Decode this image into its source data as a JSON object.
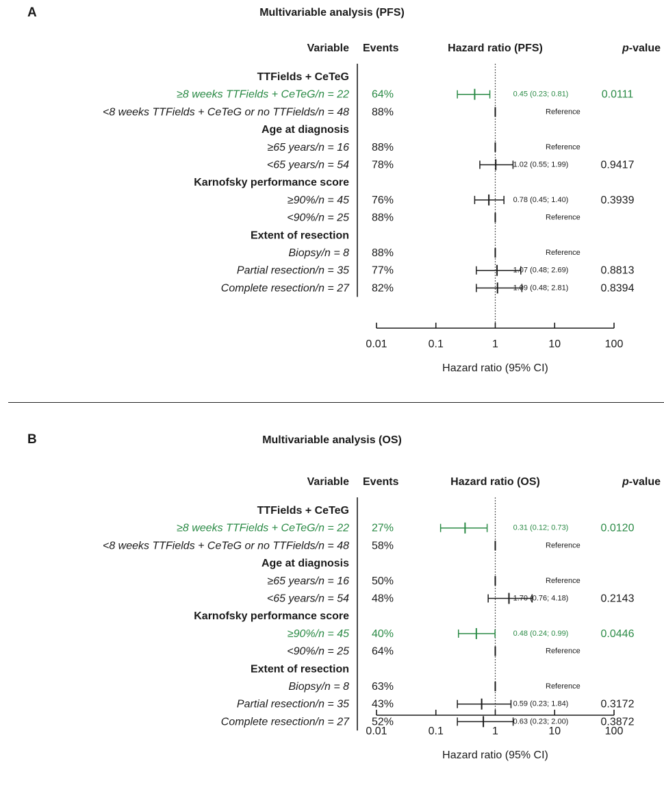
{
  "colors": {
    "highlight": "#2a8a45",
    "text": "#1a1a1a"
  },
  "panels": [
    {
      "letter": "A",
      "title": "Multivariable analysis (PFS)",
      "headers": {
        "variable": "Variable",
        "events": "Events",
        "hr": "Hazard ratio (PFS)",
        "p_prefix": "p",
        "p_suffix": "-value"
      },
      "axis": {
        "label": "Hazard ratio (95% CI)",
        "ticks": [
          "0.01",
          "0.1",
          "1",
          "10",
          "100"
        ]
      },
      "rows": [
        {
          "label": "TTFields + CeTeG",
          "kind": "group"
        },
        {
          "label": "≥8 weeks TTFields + CeTeG/n = 22",
          "kind": "item",
          "events": "64%",
          "hr": 0.45,
          "lo": 0.23,
          "hi": 0.81,
          "ci_text": "0.45 (0.23; 0.81)",
          "p": "0.0111",
          "highlight": true
        },
        {
          "label": "<8 weeks TTFields + CeTeG or no TTFields/n = 48",
          "kind": "item",
          "events": "88%",
          "hr": 1,
          "ci_text": "Reference",
          "p": "",
          "reference": true
        },
        {
          "label": "Age at diagnosis",
          "kind": "group"
        },
        {
          "label": "≥65 years/n = 16",
          "kind": "item",
          "events": "88%",
          "hr": 1,
          "ci_text": "Reference",
          "p": "",
          "reference": true
        },
        {
          "label": "<65 years/n = 54",
          "kind": "item",
          "events": "78%",
          "hr": 1.02,
          "lo": 0.55,
          "hi": 1.99,
          "ci_text": "1.02 (0.55; 1.99)",
          "p": "0.9417"
        },
        {
          "label": "Karnofsky performance score",
          "kind": "group"
        },
        {
          "label": "≥90%/n = 45",
          "kind": "item",
          "events": "76%",
          "hr": 0.78,
          "lo": 0.45,
          "hi": 1.4,
          "ci_text": "0.78 (0.45; 1.40)",
          "p": "0.3939"
        },
        {
          "label": "<90%/n = 25",
          "kind": "item",
          "events": "88%",
          "hr": 1,
          "ci_text": "Reference",
          "p": "",
          "reference": true
        },
        {
          "label": "Extent of resection",
          "kind": "group"
        },
        {
          "label": "Biopsy/n = 8",
          "kind": "item",
          "events": "88%",
          "hr": 1,
          "ci_text": "Reference",
          "p": "",
          "reference": true
        },
        {
          "label": "Partial resection/n = 35",
          "kind": "item",
          "events": "77%",
          "hr": 1.07,
          "lo": 0.48,
          "hi": 2.69,
          "ci_text": "1.07 (0.48; 2.69)",
          "p": "0.8813"
        },
        {
          "label": "Complete resection/n = 27",
          "kind": "item",
          "events": "82%",
          "hr": 1.09,
          "lo": 0.48,
          "hi": 2.81,
          "ci_text": "1.09 (0.48; 2.81)",
          "p": "0.8394"
        }
      ]
    },
    {
      "letter": "B",
      "title": "Multivariable analysis (OS)",
      "headers": {
        "variable": "Variable",
        "events": "Events",
        "hr": "Hazard ratio (OS)",
        "p_prefix": "p",
        "p_suffix": "-value"
      },
      "axis": {
        "label": "Hazard ratio (95% CI)",
        "ticks": [
          "0.01",
          "0.1",
          "1",
          "10",
          "100"
        ]
      },
      "rows": [
        {
          "label": "TTFields + CeTeG",
          "kind": "group"
        },
        {
          "label": "≥8 weeks TTFields + CeTeG/n = 22",
          "kind": "item",
          "events": "27%",
          "hr": 0.31,
          "lo": 0.12,
          "hi": 0.73,
          "ci_text": "0.31 (0.12; 0.73)",
          "p": "0.0120",
          "highlight": true
        },
        {
          "label": "<8 weeks TTFields + CeTeG or no TTFields/n = 48",
          "kind": "item",
          "events": "58%",
          "hr": 1,
          "ci_text": "Reference",
          "p": "",
          "reference": true
        },
        {
          "label": "Age at diagnosis",
          "kind": "group"
        },
        {
          "label": "≥65 years/n = 16",
          "kind": "item",
          "events": "50%",
          "hr": 1,
          "ci_text": "Reference",
          "p": "",
          "reference": true
        },
        {
          "label": "<65 years/n = 54",
          "kind": "item",
          "events": "48%",
          "hr": 1.7,
          "lo": 0.76,
          "hi": 4.18,
          "ci_text": "1.70 (0.76; 4.18)",
          "p": "0.2143"
        },
        {
          "label": "Karnofsky performance score",
          "kind": "group"
        },
        {
          "label": "≥90%/n = 45",
          "kind": "item",
          "events": "40%",
          "hr": 0.48,
          "lo": 0.24,
          "hi": 0.99,
          "ci_text": "0.48 (0.24; 0.99)",
          "p": "0.0446",
          "highlight": true
        },
        {
          "label": "<90%/n = 25",
          "kind": "item",
          "events": "64%",
          "hr": 1,
          "ci_text": "Reference",
          "p": "",
          "reference": true
        },
        {
          "label": "Extent of resection",
          "kind": "group"
        },
        {
          "label": "Biopsy/n = 8",
          "kind": "item",
          "events": "63%",
          "hr": 1,
          "ci_text": "Reference",
          "p": "",
          "reference": true
        },
        {
          "label": "Partial resection/n = 35",
          "kind": "item",
          "events": "43%",
          "hr": 0.59,
          "lo": 0.23,
          "hi": 1.84,
          "ci_text": "0.59 (0.23; 1.84)",
          "p": "0.3172"
        },
        {
          "label": "Complete resection/n = 27",
          "kind": "item",
          "events": "52%",
          "hr": 0.63,
          "lo": 0.23,
          "hi": 2.0,
          "ci_text": "0.63 (0.23; 2.00)",
          "p": "0.3872"
        }
      ]
    }
  ],
  "chart_data": [
    {
      "type": "forest",
      "title": "Multivariable analysis (PFS)",
      "xlabel": "Hazard ratio (95% CI)",
      "x_scale": "log",
      "xlim": [
        0.01,
        100
      ],
      "reference_line": 1,
      "series": [
        {
          "name": "≥8 weeks TTFields + CeTeG/n = 22",
          "hr": 0.45,
          "ci": [
            0.23,
            0.81
          ],
          "p": 0.0111
        },
        {
          "name": "<65 years/n = 54",
          "hr": 1.02,
          "ci": [
            0.55,
            1.99
          ],
          "p": 0.9417
        },
        {
          "name": "≥90%/n = 45",
          "hr": 0.78,
          "ci": [
            0.45,
            1.4
          ],
          "p": 0.3939
        },
        {
          "name": "Partial resection/n = 35",
          "hr": 1.07,
          "ci": [
            0.48,
            2.69
          ],
          "p": 0.8813
        },
        {
          "name": "Complete resection/n = 27",
          "hr": 1.09,
          "ci": [
            0.48,
            2.81
          ],
          "p": 0.8394
        }
      ]
    },
    {
      "type": "forest",
      "title": "Multivariable analysis (OS)",
      "xlabel": "Hazard ratio (95% CI)",
      "x_scale": "log",
      "xlim": [
        0.01,
        100
      ],
      "reference_line": 1,
      "series": [
        {
          "name": "≥8 weeks TTFields + CeTeG/n = 22",
          "hr": 0.31,
          "ci": [
            0.12,
            0.73
          ],
          "p": 0.012
        },
        {
          "name": "<65 years/n = 54",
          "hr": 1.7,
          "ci": [
            0.76,
            4.18
          ],
          "p": 0.2143
        },
        {
          "name": "≥90%/n = 45",
          "hr": 0.48,
          "ci": [
            0.24,
            0.99
          ],
          "p": 0.0446
        },
        {
          "name": "Partial resection/n = 35",
          "hr": 0.59,
          "ci": [
            0.23,
            1.84
          ],
          "p": 0.3172
        },
        {
          "name": "Complete resection/n = 27",
          "hr": 0.63,
          "ci": [
            0.23,
            2.0
          ],
          "p": 0.3872
        }
      ]
    }
  ]
}
